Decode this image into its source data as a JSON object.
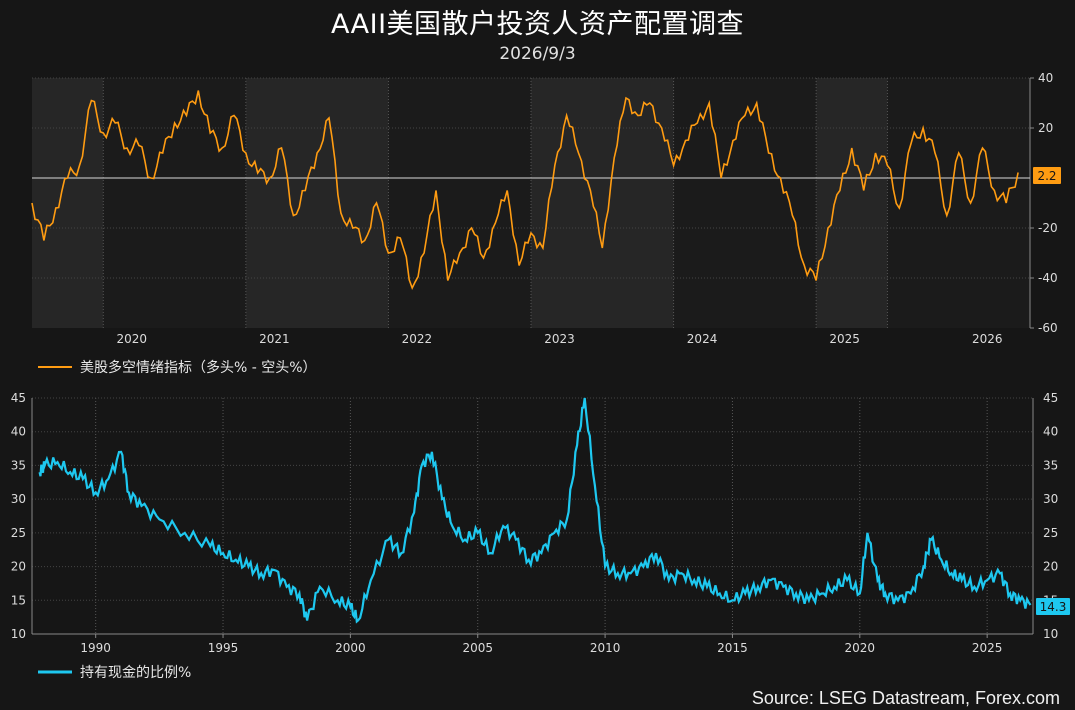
{
  "title": "AAII美国散户投资人资产配置调查",
  "subtitle": "2026/9/3",
  "source": "Source: LSEG Datastream, Forex.com",
  "colors": {
    "background": "#161616",
    "top_series": "#ff9c12",
    "bottom_series": "#1ec8f0",
    "shade": "#262626"
  },
  "chart_data": [
    {
      "type": "line",
      "series": [
        {
          "name": "美股多空情绪指标（多头% - 空头%）"
        }
      ],
      "x_ticks": [
        "2020",
        "2021",
        "2022",
        "2023",
        "2024",
        "2025",
        "2026"
      ],
      "y_ticks": [
        40,
        20,
        -20,
        -40,
        -60
      ],
      "ylim": [
        -60,
        40
      ],
      "reference_line": 0,
      "last_value": "2.2",
      "points": [
        [
          "2019-10",
          -10
        ],
        [
          "2019-11",
          -25
        ],
        [
          "2019-12",
          -12
        ],
        [
          "2020-01",
          0
        ],
        [
          "2020-02",
          5
        ],
        [
          "2020-03",
          31
        ],
        [
          "2020-04",
          18
        ],
        [
          "2020-05",
          22
        ],
        [
          "2020-06",
          12
        ],
        [
          "2020-07",
          13
        ],
        [
          "2020-08",
          0
        ],
        [
          "2020-09",
          10
        ],
        [
          "2020-10",
          22
        ],
        [
          "2020-11",
          25
        ],
        [
          "2020-12",
          35
        ],
        [
          "2021-01",
          18
        ],
        [
          "2021-02",
          12
        ],
        [
          "2021-03",
          25
        ],
        [
          "2021-04",
          10
        ],
        [
          "2021-05",
          2
        ],
        [
          "2021-06",
          0
        ],
        [
          "2021-07",
          12
        ],
        [
          "2021-08",
          -15
        ],
        [
          "2021-09",
          -5
        ],
        [
          "2021-10",
          10
        ],
        [
          "2021-11",
          24
        ],
        [
          "2021-12",
          -14
        ],
        [
          "2022-01",
          -20
        ],
        [
          "2022-02",
          -25
        ],
        [
          "2022-03",
          -10
        ],
        [
          "2022-04",
          -30
        ],
        [
          "2022-05",
          -24
        ],
        [
          "2022-06",
          -44
        ],
        [
          "2022-07",
          -30
        ],
        [
          "2022-08",
          -5
        ],
        [
          "2022-09",
          -41
        ],
        [
          "2022-10",
          -30
        ],
        [
          "2022-11",
          -20
        ],
        [
          "2022-12",
          -32
        ],
        [
          "2023-01",
          -18
        ],
        [
          "2023-02",
          -5
        ],
        [
          "2023-03",
          -35
        ],
        [
          "2023-04",
          -22
        ],
        [
          "2023-05",
          -28
        ],
        [
          "2023-06",
          5
        ],
        [
          "2023-07",
          25
        ],
        [
          "2023-08",
          10
        ],
        [
          "2023-09",
          -5
        ],
        [
          "2023-10",
          -28
        ],
        [
          "2023-11",
          8
        ],
        [
          "2023-12",
          32
        ],
        [
          "2024-01",
          25
        ],
        [
          "2024-02",
          30
        ],
        [
          "2024-03",
          20
        ],
        [
          "2024-04",
          5
        ],
        [
          "2024-05",
          15
        ],
        [
          "2024-06",
          22
        ],
        [
          "2024-07",
          30
        ],
        [
          "2024-08",
          0
        ],
        [
          "2024-09",
          15
        ],
        [
          "2024-10",
          25
        ],
        [
          "2024-11",
          30
        ],
        [
          "2024-12",
          10
        ],
        [
          "2025-01",
          0
        ],
        [
          "2025-02",
          -15
        ],
        [
          "2025-03",
          -35
        ],
        [
          "2025-04",
          -41
        ],
        [
          "2025-05",
          -20
        ],
        [
          "2025-06",
          -5
        ],
        [
          "2025-07",
          12
        ],
        [
          "2025-08",
          -5
        ],
        [
          "2025-09",
          10
        ],
        [
          "2025-10",
          5
        ],
        [
          "2025-11",
          -12
        ],
        [
          "2025-12",
          14
        ],
        [
          "2026-01",
          20
        ],
        [
          "2026-02",
          10
        ],
        [
          "2026-03",
          -15
        ],
        [
          "2026-04",
          10
        ],
        [
          "2026-05",
          -10
        ],
        [
          "2026-06",
          12
        ],
        [
          "2026-07",
          -5
        ],
        [
          "2026-08",
          -10
        ],
        [
          "2026-09",
          2.2
        ]
      ],
      "legend_position": "bottom-left"
    },
    {
      "type": "line",
      "series": [
        {
          "name": "持有现金的比例%"
        }
      ],
      "x_ticks": [
        "1990",
        "1995",
        "2000",
        "2005",
        "2010",
        "2015",
        "2020",
        "2025"
      ],
      "y_ticks": [
        45,
        40,
        35,
        30,
        25,
        20,
        15,
        10
      ],
      "ylim": [
        10,
        45
      ],
      "last_value": "14.3",
      "points": [
        [
          1987.8,
          34
        ],
        [
          1988.0,
          35
        ],
        [
          1988.5,
          35.5
        ],
        [
          1989.0,
          34
        ],
        [
          1989.5,
          33
        ],
        [
          1990.0,
          31
        ],
        [
          1990.5,
          33
        ],
        [
          1991.0,
          37
        ],
        [
          1991.3,
          31
        ],
        [
          1991.8,
          29
        ],
        [
          1992.5,
          27
        ],
        [
          1993.5,
          25
        ],
        [
          1994.5,
          23
        ],
        [
          1995.0,
          22
        ],
        [
          1995.5,
          21
        ],
        [
          1996.0,
          20
        ],
        [
          1996.5,
          19
        ],
        [
          1997.0,
          19.5
        ],
        [
          1997.5,
          17
        ],
        [
          1998.0,
          16
        ],
        [
          1998.3,
          12
        ],
        [
          1998.8,
          17
        ],
        [
          1999.5,
          15
        ],
        [
          2000.0,
          14
        ],
        [
          2000.3,
          12
        ],
        [
          2000.8,
          18
        ],
        [
          2001.5,
          24
        ],
        [
          2002.0,
          22
        ],
        [
          2002.5,
          28
        ],
        [
          2002.8,
          35
        ],
        [
          2003.2,
          37
        ],
        [
          2003.6,
          30
        ],
        [
          2004.0,
          26
        ],
        [
          2004.5,
          24
        ],
        [
          2005.0,
          25
        ],
        [
          2005.5,
          22
        ],
        [
          2006.0,
          26
        ],
        [
          2006.5,
          24
        ],
        [
          2007.0,
          21
        ],
        [
          2007.5,
          22
        ],
        [
          2008.0,
          25
        ],
        [
          2008.5,
          27
        ],
        [
          2008.9,
          38
        ],
        [
          2009.2,
          45
        ],
        [
          2009.6,
          32
        ],
        [
          2010.0,
          20
        ],
        [
          2010.5,
          19
        ],
        [
          2011.0,
          19
        ],
        [
          2011.5,
          20
        ],
        [
          2012.0,
          22
        ],
        [
          2012.5,
          18
        ],
        [
          2013.0,
          19
        ],
        [
          2013.5,
          18
        ],
        [
          2014.0,
          17
        ],
        [
          2014.5,
          16
        ],
        [
          2015.0,
          15
        ],
        [
          2015.5,
          16
        ],
        [
          2016.0,
          17
        ],
        [
          2016.5,
          18
        ],
        [
          2017.0,
          17
        ],
        [
          2017.5,
          16
        ],
        [
          2018.0,
          15
        ],
        [
          2018.5,
          16
        ],
        [
          2019.0,
          17
        ],
        [
          2019.5,
          18
        ],
        [
          2020.0,
          16
        ],
        [
          2020.3,
          25
        ],
        [
          2020.7,
          18
        ],
        [
          2021.0,
          16
        ],
        [
          2021.5,
          15
        ],
        [
          2022.0,
          16
        ],
        [
          2022.5,
          20
        ],
        [
          2022.8,
          24
        ],
        [
          2023.2,
          21
        ],
        [
          2023.6,
          19
        ],
        [
          2024.0,
          18
        ],
        [
          2024.5,
          17
        ],
        [
          2025.0,
          18
        ],
        [
          2025.5,
          19
        ],
        [
          2025.9,
          16
        ],
        [
          2026.3,
          15
        ],
        [
          2026.7,
          14.3
        ]
      ],
      "legend_position": "bottom-left"
    }
  ]
}
